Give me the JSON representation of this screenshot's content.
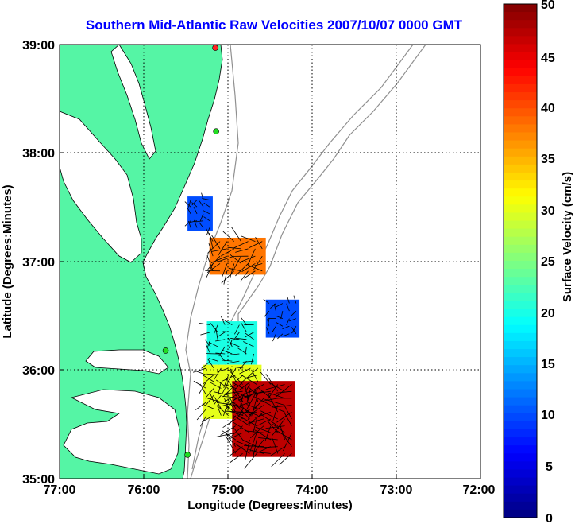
{
  "title": "Southern Mid-Atlantic Raw Velocities 2007/10/07 0000 GMT",
  "x_axis": {
    "label": "Longitude (Degrees:Minutes)",
    "ticks": [
      "77:00",
      "76:00",
      "75:00",
      "74:00",
      "73:00",
      "72:00"
    ]
  },
  "y_axis": {
    "label": "Latitude (Degrees:Minutes)",
    "ticks": [
      "39:00",
      "38:00",
      "37:00",
      "36:00",
      "35:00"
    ]
  },
  "colorbar": {
    "label": "Surface Velocity (cm/s)",
    "ticks": [
      "50",
      "45",
      "40",
      "35",
      "30",
      "25",
      "20",
      "15",
      "10",
      "5",
      "0"
    ],
    "min": 0,
    "max": 50,
    "colormap": "jet"
  },
  "colors": {
    "land": "#55f5a5",
    "title": "#0000ff",
    "bathymetry": "#909090",
    "station": "#22dd22",
    "station_alt": "#ff2222"
  },
  "chart_data": {
    "type": "map",
    "extent": {
      "lon": [
        -77,
        -72
      ],
      "lat": [
        35,
        39
      ]
    },
    "grid": true,
    "stations": [
      {
        "lon": -75.15,
        "lat": 38.97,
        "status": "red"
      },
      {
        "lon": -75.14,
        "lat": 38.2
      },
      {
        "lon": -75.74,
        "lat": 36.18
      },
      {
        "lon": -75.48,
        "lat": 35.22
      }
    ],
    "velocity_patches": [
      {
        "lon": [
          -75.48,
          -75.18
        ],
        "lat": [
          37.28,
          37.6
        ],
        "speed_cm_s": 10
      },
      {
        "lon": [
          -75.22,
          -74.55
        ],
        "lat": [
          36.88,
          37.22
        ],
        "speed_cm_s": 38
      },
      {
        "lon": [
          -74.55,
          -74.15
        ],
        "lat": [
          36.3,
          36.65
        ],
        "speed_cm_s": 10
      },
      {
        "lon": [
          -75.25,
          -74.65
        ],
        "lat": [
          36.05,
          36.45
        ],
        "speed_cm_s": 20
      },
      {
        "lon": [
          -75.3,
          -74.6
        ],
        "lat": [
          35.55,
          36.05
        ],
        "speed_cm_s": 30
      },
      {
        "lon": [
          -74.95,
          -74.2
        ],
        "lat": [
          35.2,
          35.9
        ],
        "speed_cm_s": 47
      }
    ]
  }
}
